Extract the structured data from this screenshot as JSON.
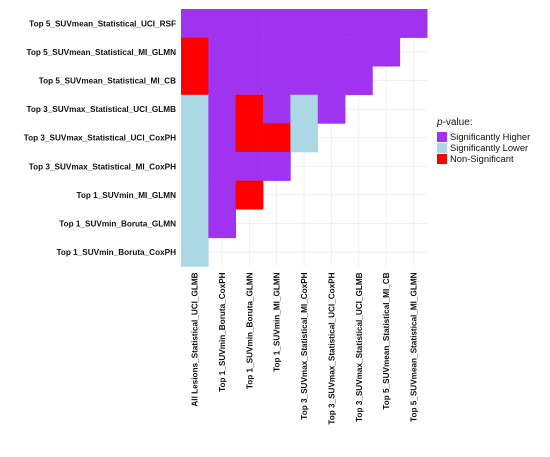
{
  "chart_data": {
    "type": "heatmap",
    "title": "",
    "xlabel": "",
    "ylabel": "",
    "grid": true,
    "legend_placement": "right",
    "rows": [
      "Top 5_SUVmean_Statistical_UCI_RSF",
      "Top 5_SUVmean_Statistical_MI_GLMN",
      "Top 5_SUVmean_Statistical_MI_CB",
      "Top 3_SUVmax_Statistical_UCI_GLMB",
      "Top 3_SUVmax_Statistical_UCI_CoxPH",
      "Top 3_SUVmax_Statistical_MI_CoxPH",
      "Top 1_SUVmin_MI_GLMN",
      "Top 1_SUVmin_Boruta_GLMN",
      "Top 1_SUVmin_Boruta_CoxPH"
    ],
    "columns": [
      "All Lesions_Statistical_UCI_GLMB",
      "Top 1_SUVmin_Boruta_CoxPH",
      "Top 1_SUVmin_Boruta_GLMN",
      "Top 1_SUVmin_MI_GLMN",
      "Top 3_SUVmax_Statistical_MI_CoxPH",
      "Top 3_SUVmax_Statistical_UCI_CoxPH",
      "Top 3_SUVmax_Statistical_UCI_GLMB",
      "Top 5_SUVmean_Statistical_MI_CB",
      "Top 5_SUVmean_Statistical_MI_GLMN"
    ],
    "categories_key": [
      "H",
      "L",
      "N"
    ],
    "cells": [
      [
        "H",
        "H",
        "H",
        "H",
        "H",
        "H",
        "H",
        "H",
        "H"
      ],
      [
        "N",
        "H",
        "H",
        "H",
        "H",
        "H",
        "H",
        "H",
        null
      ],
      [
        "N",
        "H",
        "H",
        "H",
        "H",
        "H",
        "H",
        null,
        null
      ],
      [
        "L",
        "H",
        "N",
        "H",
        "L",
        "H",
        null,
        null,
        null
      ],
      [
        "L",
        "H",
        "N",
        "N",
        "L",
        null,
        null,
        null,
        null
      ],
      [
        "L",
        "H",
        "H",
        "H",
        null,
        null,
        null,
        null,
        null
      ],
      [
        "L",
        "H",
        "N",
        null,
        null,
        null,
        null,
        null,
        null
      ],
      [
        "L",
        "H",
        null,
        null,
        null,
        null,
        null,
        null,
        null
      ],
      [
        "L",
        null,
        null,
        null,
        null,
        null,
        null,
        null,
        null
      ]
    ],
    "legend": {
      "title_italic": "p",
      "title_rest": "-value:",
      "entries": [
        {
          "key": "H",
          "label": "Significantly Higher",
          "color": "#a033f0"
        },
        {
          "key": "L",
          "label": "Significantly Lower",
          "color": "#acd8e6"
        },
        {
          "key": "N",
          "label": "Non-Significant",
          "color": "#ff0000"
        }
      ]
    },
    "grid_color": "#ebebeb"
  }
}
